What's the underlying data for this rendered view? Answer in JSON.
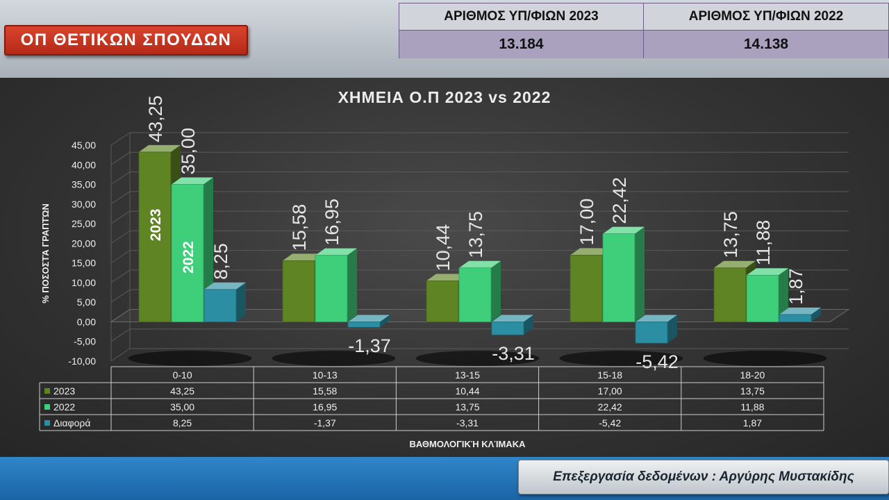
{
  "header": {
    "badge": "ΟΠ ΘΕΤΙΚΩΝ ΣΠΟΥΔΩΝ",
    "stats": {
      "h2023": "ΑΡΙΘΜΟΣ ΥΠ/ΦΙΩΝ 2023",
      "h2022": "ΑΡΙΘΜΟΣ ΥΠ/ΦΙΩΝ 2022",
      "v2023": "13.184",
      "v2022": "14.138"
    }
  },
  "footer": {
    "credit": "Επεξεργασία δεδομένων : Αργύρης Μυστακίδης"
  },
  "colors": {
    "s2023": "#5e8424",
    "s2022": "#3fcf7a",
    "diff": "#2c8ea3"
  },
  "chart_data": {
    "type": "bar",
    "title": "ΧΗΜΕΙΑ Ο.Π 2023 vs 2022",
    "ylabel": "% ΠΟΣΟΣΤΆ ΓΡΑΠΤΏΝ",
    "xlabel": "ΒΑΘΜΟΛΟΓΙΚΉ ΚΛΊΜΑΚΑ",
    "ylim": [
      -10,
      45
    ],
    "y_ticks": [
      "45,00",
      "40,00",
      "35,00",
      "30,00",
      "25,00",
      "20,00",
      "15,00",
      "10,00",
      "5,00",
      "0,00",
      "-5,00",
      "-10,00"
    ],
    "categories": [
      "0-10",
      "10-13",
      "13-15",
      "15-18",
      "18-20"
    ],
    "series": [
      {
        "name": "2023",
        "values": [
          43.25,
          15.58,
          10.44,
          17.0,
          13.75
        ],
        "labels": [
          "43,25",
          "15,58",
          "10,44",
          "17,00",
          "13,75"
        ]
      },
      {
        "name": "2022",
        "values": [
          35.0,
          16.95,
          13.75,
          22.42,
          11.88
        ],
        "labels": [
          "35,00",
          "16,95",
          "13,75",
          "22,42",
          "11,88"
        ]
      },
      {
        "name": "Διαφορά",
        "values": [
          8.25,
          -1.37,
          -3.31,
          -5.42,
          1.87
        ],
        "labels": [
          "8,25",
          "-1,37",
          "-3,31",
          "-5,42",
          "1,87"
        ]
      }
    ],
    "in_bar_labels": [
      "2023",
      "2022"
    ],
    "grid": true,
    "data_table": true
  }
}
